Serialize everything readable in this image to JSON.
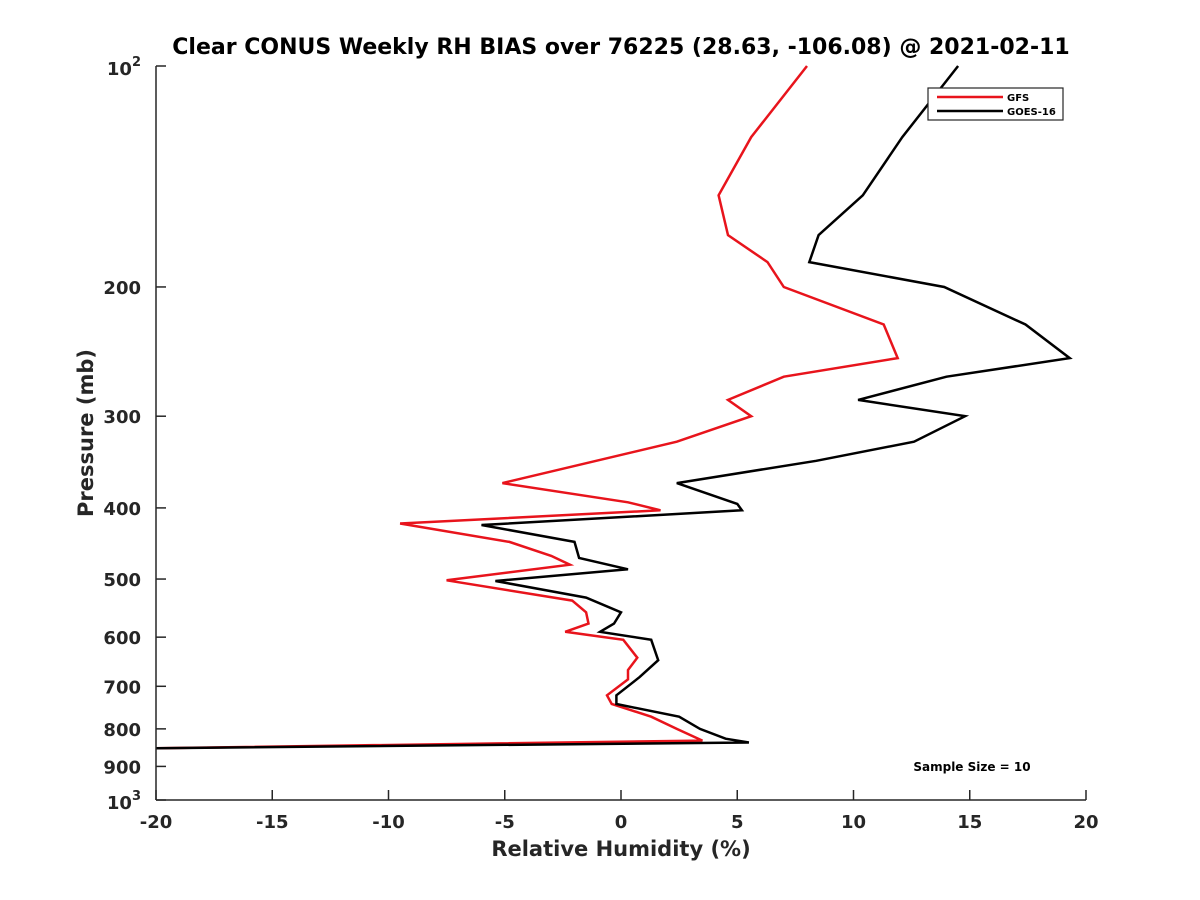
{
  "chart_data": {
    "type": "line",
    "title": "Clear CONUS Weekly RH BIAS over 76225 (28.63, -106.08) @ 2021-02-11",
    "xlabel": "Relative Humidity (%)",
    "ylabel": "Pressure (mb)",
    "xlim": [
      -20,
      20
    ],
    "ylim": [
      100,
      1000
    ],
    "yscale": "log",
    "y_reversed": true,
    "grid": false,
    "legend_position": "top-right",
    "annotation": "Sample Size = 10",
    "x_ticks": [
      "-20",
      "-15",
      "-10",
      "-5",
      "0",
      "5",
      "10",
      "15",
      "20"
    ],
    "y_ticks": [
      {
        "value": 100,
        "base": "10",
        "exp": "2"
      },
      {
        "value": 200,
        "label": "200"
      },
      {
        "value": 300,
        "label": "300"
      },
      {
        "value": 400,
        "label": "400"
      },
      {
        "value": 500,
        "label": "500"
      },
      {
        "value": 600,
        "label": "600"
      },
      {
        "value": 700,
        "label": "700"
      },
      {
        "value": 800,
        "label": "800"
      },
      {
        "value": 900,
        "label": "900"
      },
      {
        "value": 1000,
        "base": "10",
        "exp": "3"
      }
    ],
    "series": [
      {
        "name": "GFS",
        "color": "#e8141c",
        "points": [
          [
            8.0,
            100
          ],
          [
            5.6,
            125
          ],
          [
            4.2,
            150
          ],
          [
            4.6,
            170
          ],
          [
            6.3,
            185
          ],
          [
            7.0,
            200
          ],
          [
            11.3,
            225
          ],
          [
            11.9,
            250
          ],
          [
            7.0,
            265
          ],
          [
            4.6,
            285
          ],
          [
            5.6,
            300
          ],
          [
            2.4,
            325
          ],
          [
            -5.1,
            370
          ],
          [
            0.3,
            393
          ],
          [
            1.7,
            403
          ],
          [
            -9.5,
            420
          ],
          [
            -4.8,
            445
          ],
          [
            -3.0,
            465
          ],
          [
            -2.2,
            478
          ],
          [
            -7.5,
            502
          ],
          [
            -2.1,
            535
          ],
          [
            -1.5,
            555
          ],
          [
            -1.4,
            575
          ],
          [
            -2.4,
            590
          ],
          [
            0.1,
            605
          ],
          [
            0.7,
            640
          ],
          [
            0.3,
            665
          ],
          [
            0.3,
            685
          ],
          [
            -0.6,
            720
          ],
          [
            -0.4,
            740
          ],
          [
            1.3,
            770
          ],
          [
            2.4,
            800
          ],
          [
            3.5,
            830
          ],
          [
            -20.0,
            850
          ]
        ]
      },
      {
        "name": "GOES-16",
        "color": "#000000",
        "points": [
          [
            14.5,
            100
          ],
          [
            12.1,
            125
          ],
          [
            10.4,
            150
          ],
          [
            8.5,
            170
          ],
          [
            8.1,
            185
          ],
          [
            13.9,
            200
          ],
          [
            17.4,
            225
          ],
          [
            19.3,
            250
          ],
          [
            14.0,
            265
          ],
          [
            10.2,
            285
          ],
          [
            14.8,
            300
          ],
          [
            12.6,
            325
          ],
          [
            8.4,
            345
          ],
          [
            2.4,
            370
          ],
          [
            5.0,
            395
          ],
          [
            5.2,
            403
          ],
          [
            -6.0,
            422
          ],
          [
            -2.0,
            445
          ],
          [
            -1.8,
            468
          ],
          [
            0.3,
            485
          ],
          [
            -5.4,
            503
          ],
          [
            -1.5,
            530
          ],
          [
            0.0,
            555
          ],
          [
            -0.3,
            575
          ],
          [
            -0.9,
            590
          ],
          [
            1.3,
            605
          ],
          [
            1.6,
            645
          ],
          [
            0.8,
            680
          ],
          [
            -0.2,
            720
          ],
          [
            -0.2,
            740
          ],
          [
            2.5,
            770
          ],
          [
            3.4,
            800
          ],
          [
            4.5,
            825
          ],
          [
            5.5,
            835
          ],
          [
            -20.0,
            850
          ]
        ]
      }
    ]
  }
}
